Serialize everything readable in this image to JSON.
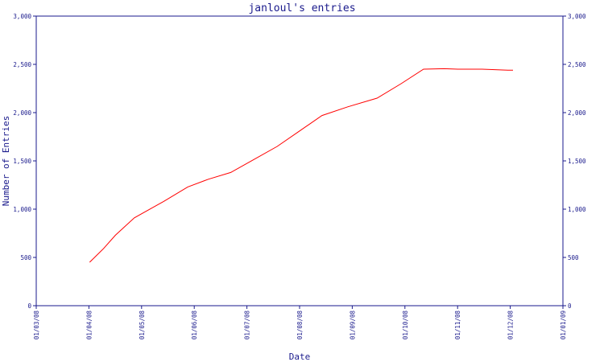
{
  "chart_data": {
    "type": "line",
    "title": "janloul's entries",
    "xlabel": "Date",
    "ylabel": "Number of Entries",
    "ylim": [
      0,
      3000
    ],
    "y_ticks": [
      0,
      500,
      1000,
      1500,
      2000,
      2500,
      3000
    ],
    "y_tick_labels": [
      "0",
      "500",
      "1,000",
      "1,500",
      "2,000",
      "2,500",
      "3,000"
    ],
    "x_ticks": [
      "01/03/08",
      "01/04/08",
      "01/05/08",
      "01/06/08",
      "01/07/08",
      "01/08/08",
      "01/09/08",
      "01/10/08",
      "01/11/08",
      "01/12/08",
      "01/01/09"
    ],
    "xlim": [
      "2008-03-01",
      "2009-01-01"
    ],
    "grid": false,
    "colors": {
      "line": "#ff0000",
      "axis": "#1a1a8c",
      "text": "#1a1a8c"
    },
    "series": [
      {
        "x": [
          "2008-04-01",
          "2008-04-09",
          "2008-04-16",
          "2008-04-27",
          "2008-05-14",
          "2008-05-28",
          "2008-06-09",
          "2008-06-22",
          "2008-07-05",
          "2008-07-19",
          "2008-08-01",
          "2008-08-14",
          "2008-08-29",
          "2008-09-15",
          "2008-09-29",
          "2008-10-12",
          "2008-10-24",
          "2008-11-01",
          "2008-11-15",
          "2008-11-30",
          "2008-12-03"
        ],
        "values": [
          450,
          590,
          730,
          910,
          1080,
          1230,
          1310,
          1380,
          1510,
          1650,
          1810,
          1970,
          2060,
          2150,
          2300,
          2450,
          2455,
          2450,
          2450,
          2440,
          2440
        ]
      }
    ]
  }
}
